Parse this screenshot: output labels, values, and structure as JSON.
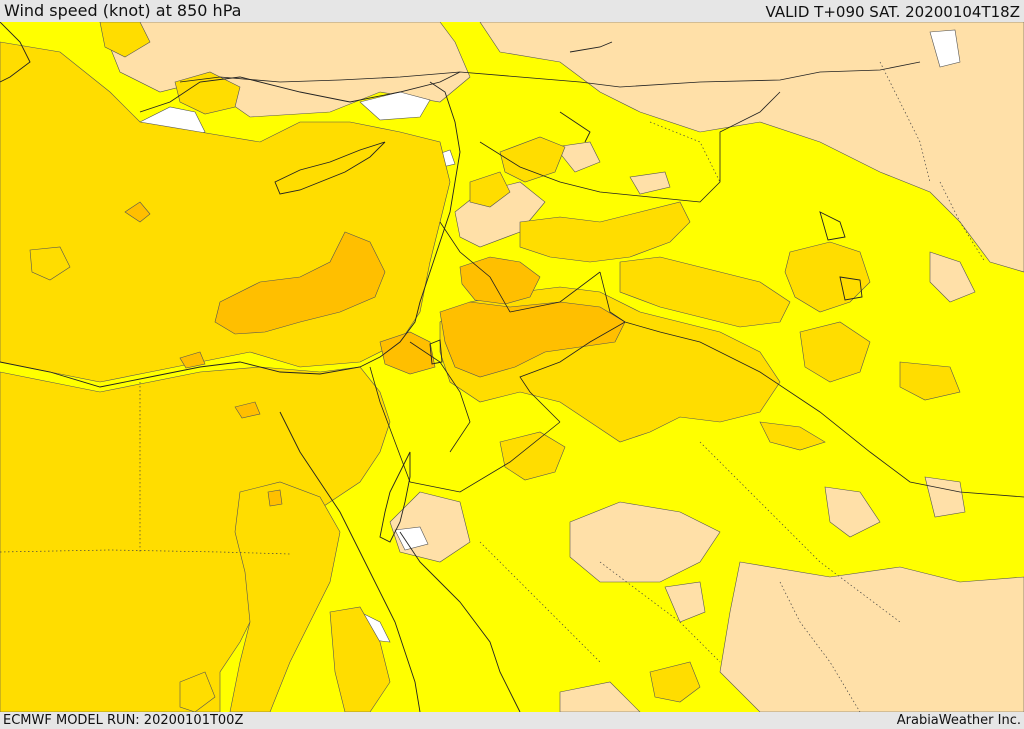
{
  "header": {
    "title": "Wind speed (knot) at 850 hPa",
    "valid": "VALID T+090 SAT. 20200104T18Z"
  },
  "footer": {
    "model_run": "ECMWF MODEL RUN: 20200101T00Z",
    "credit": "ArabiaWeather Inc."
  },
  "map": {
    "field": "wind-speed-850hPa",
    "colors": {
      "calm": "#ffffff",
      "light": "#ffe0a8",
      "moderate": "#ffff00",
      "fresh": "#ffdd00",
      "strong": "#ffbf00",
      "coastline": "#222222",
      "border": "#222222"
    }
  }
}
